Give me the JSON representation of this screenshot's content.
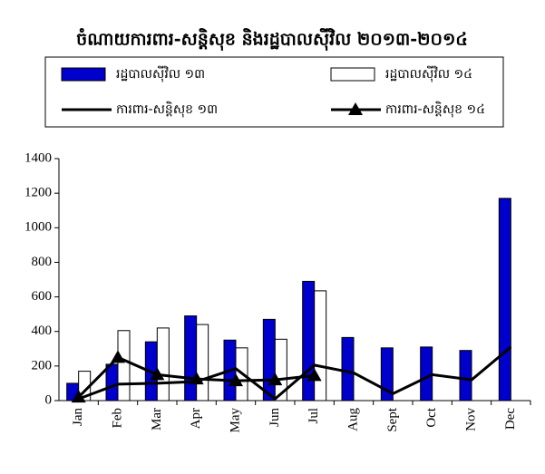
{
  "chart_data": {
    "type": "combo",
    "title": "ចំណាយការពារ-សន្តិសុខ និងរដ្ឋបាលស៊ីវិល ២០១៣-២០១៤",
    "categories": [
      "Jan",
      "Feb",
      "Mar",
      "Apr",
      "May",
      "Jun",
      "Jul",
      "Aug",
      "Sept",
      "Oct",
      "Nov",
      "Dec"
    ],
    "series": [
      {
        "name": "រដ្ឋបាលស៊ីវិល ១៣",
        "type": "bar",
        "color": "#0000cc",
        "values": [
          100,
          210,
          340,
          490,
          350,
          470,
          690,
          365,
          305,
          310,
          290,
          1170
        ]
      },
      {
        "name": "រដ្ឋបាលស៊ីវិល ១៤",
        "type": "bar",
        "color": "#ffffff",
        "values": [
          170,
          405,
          420,
          440,
          305,
          355,
          635,
          null,
          null,
          null,
          null,
          null
        ]
      },
      {
        "name": "ការពារ-សន្តិសុខ ១៣",
        "type": "line",
        "color": "#000000",
        "values": [
          10,
          95,
          100,
          110,
          185,
          10,
          205,
          160,
          40,
          150,
          120,
          310
        ]
      },
      {
        "name": "ការពារ-សន្តិសុខ ១៤",
        "type": "line",
        "marker": "triangle",
        "color": "#000000",
        "values": [
          20,
          250,
          150,
          125,
          115,
          120,
          145,
          null,
          null,
          null,
          null,
          null
        ]
      }
    ],
    "ylim": [
      0,
      1400
    ],
    "yticks": [
      0,
      200,
      400,
      600,
      800,
      1000,
      1200,
      1400
    ],
    "grid": false
  }
}
